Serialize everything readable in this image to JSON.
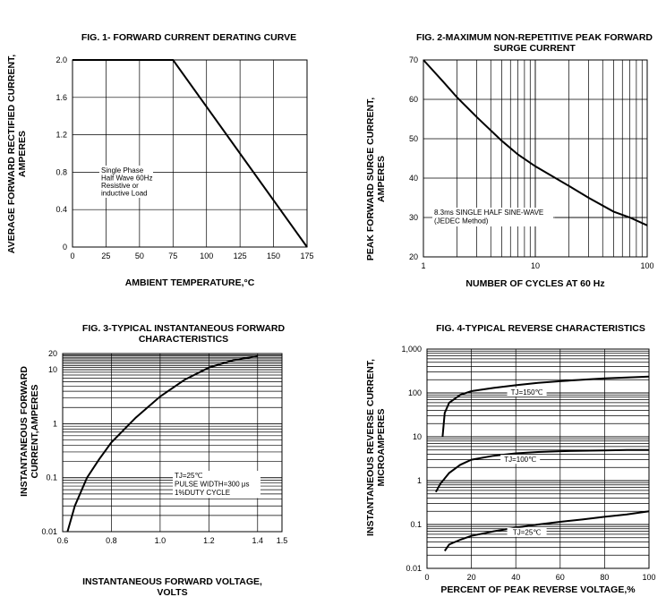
{
  "chart_data": [
    {
      "id": "fig1",
      "type": "line",
      "title": "FIG. 1- FORWARD CURRENT DERATING CURVE",
      "xlabel": "AMBIENT TEMPERATURE,°C",
      "ylabel": [
        "AVERAGE FORWARD RECTIFIED CURRENT,",
        "AMPERES"
      ],
      "xlim": [
        0,
        175
      ],
      "ylim": [
        0,
        2.0
      ],
      "xticks": [
        0,
        25,
        50,
        75,
        100,
        125,
        150,
        175
      ],
      "xtick_labels": [
        "0",
        "25",
        "50",
        "75",
        "100",
        "125",
        "150",
        "175"
      ],
      "yticks": [
        0,
        0.4,
        0.8,
        1.2,
        1.6,
        2.0
      ],
      "ytick_labels": [
        "0",
        "0.4",
        "0.8",
        "1.2",
        "1.6",
        "2.0"
      ],
      "grid": "major",
      "series": [
        {
          "x": [
            0,
            75,
            175
          ],
          "y": [
            2.0,
            2.0,
            0
          ]
        }
      ],
      "annotation": [
        "Single Phase",
        "Half Wave 60Hz",
        "Resistive or",
        "inductive Load"
      ]
    },
    {
      "id": "fig2",
      "type": "line",
      "title": [
        "FIG. 2-MAXIMUM NON-REPETITIVE PEAK FORWARD",
        "SURGE CURRENT"
      ],
      "xlabel": "NUMBER OF CYCLES AT 60 Hz",
      "ylabel": [
        "PEAK  FORWARD SURGE CURRENT,",
        "AMPERES"
      ],
      "xscale": "log",
      "xlim": [
        1,
        100
      ],
      "ylim": [
        20,
        70
      ],
      "xticks": [
        1,
        10,
        100
      ],
      "xtick_labels": [
        "1",
        "10",
        "100"
      ],
      "yticks": [
        20,
        30,
        40,
        50,
        60,
        70
      ],
      "ytick_labels": [
        "20",
        "30",
        "40",
        "50",
        "60",
        "70"
      ],
      "grid": "log-x",
      "series": [
        {
          "x": [
            1,
            1.5,
            2,
            3,
            5,
            7,
            10,
            20,
            30,
            50,
            70,
            100
          ],
          "y": [
            70,
            64.5,
            60.5,
            55.5,
            49.5,
            46,
            43,
            38,
            35,
            31.5,
            30,
            28
          ]
        }
      ],
      "annotation": [
        "8.3ms SINGLE HALF SINE-WAVE",
        "(JEDEC Method)"
      ]
    },
    {
      "id": "fig3",
      "type": "line",
      "title": [
        "FIG. 3-TYPICAL INSTANTANEOUS FORWARD",
        "CHARACTERISTICS"
      ],
      "xlabel": [
        "INSTANTANEOUS FORWARD VOLTAGE,",
        "VOLTS"
      ],
      "ylabel": [
        "INSTANTANEOUS FORWARD",
        "CURRENT,AMPERES"
      ],
      "yscale": "log",
      "xlim": [
        0.6,
        1.5
      ],
      "ylim": [
        0.01,
        20
      ],
      "xticks": [
        0.6,
        0.8,
        1.0,
        1.2,
        1.4,
        1.5
      ],
      "xtick_labels": [
        "0.6",
        "0.8",
        "1.0",
        "1.2",
        "1.4",
        "1.5"
      ],
      "yticks": [
        0.01,
        0.1,
        1,
        10,
        20
      ],
      "ytick_labels": [
        "0.01",
        "0.1",
        "1",
        "10",
        "20"
      ],
      "grid": "log-y",
      "series": [
        {
          "x": [
            0.62,
            0.65,
            0.7,
            0.75,
            0.8,
            0.9,
            1.0,
            1.1,
            1.2,
            1.3,
            1.4
          ],
          "y": [
            0.01,
            0.03,
            0.1,
            0.22,
            0.45,
            1.3,
            3.2,
            6.5,
            11,
            15,
            18
          ]
        }
      ],
      "annotation": [
        "TJ=25℃",
        "PULSE WIDTH=300 μs",
        "1%DUTY CYCLE"
      ]
    },
    {
      "id": "fig4",
      "type": "line",
      "title": "FIG. 4-TYPICAL REVERSE CHARACTERISTICS",
      "xlabel": "PERCENT OF PEAK REVERSE VOLTAGE,%",
      "ylabel": [
        "INSTANTANEOUS REVERSE CURRENT,",
        "MICROAMPERES"
      ],
      "yscale": "log",
      "xlim": [
        0,
        100
      ],
      "ylim": [
        0.01,
        1000
      ],
      "xticks": [
        0,
        20,
        40,
        60,
        80,
        100
      ],
      "xtick_labels": [
        "0",
        "20",
        "40",
        "60",
        "80",
        "100"
      ],
      "yticks": [
        0.01,
        0.1,
        1,
        10,
        100,
        1000
      ],
      "ytick_labels": [
        "0.01",
        "0.1",
        "1",
        "10",
        "100",
        "1,000"
      ],
      "grid": "log-y",
      "series": [
        {
          "name": "TJ=150℃",
          "x": [
            7,
            8,
            10,
            15,
            20,
            30,
            40,
            50,
            60,
            70,
            80,
            90,
            100
          ],
          "y": [
            10,
            35,
            60,
            90,
            110,
            130,
            150,
            170,
            185,
            200,
            215,
            225,
            235
          ]
        },
        {
          "name": "TJ=100℃",
          "x": [
            4,
            6,
            10,
            15,
            20,
            30,
            40,
            50,
            60,
            70,
            80,
            90,
            100
          ],
          "y": [
            0.55,
            0.85,
            1.5,
            2.3,
            3,
            3.7,
            4.2,
            4.5,
            4.7,
            4.8,
            4.9,
            5,
            5
          ]
        },
        {
          "name": "TJ=25℃",
          "x": [
            8,
            10,
            15,
            20,
            30,
            40,
            50,
            60,
            70,
            80,
            90,
            100
          ],
          "y": [
            0.025,
            0.035,
            0.045,
            0.055,
            0.07,
            0.085,
            0.1,
            0.115,
            0.13,
            0.15,
            0.17,
            0.2
          ]
        }
      ]
    }
  ]
}
